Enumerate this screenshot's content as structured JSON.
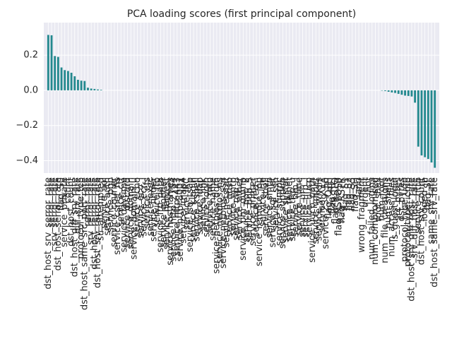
{
  "chart_data": {
    "type": "bar",
    "title": "PCA loading scores (first principal component)",
    "color": "#23898e",
    "background": "#eaeaf2",
    "grid": true,
    "ylim": [
      -0.47,
      0.385
    ],
    "yticks": [
      {
        "value": -0.4,
        "label": "−0.4"
      },
      {
        "value": -0.2,
        "label": "−0.2"
      },
      {
        "value": 0.0,
        "label": "0.0"
      },
      0.2
    ],
    "categories": [
      "dst_host_srv_serror_rate",
      "serror_rate",
      "srv_serror_rate",
      "dst_host_serror_rate",
      "flag_S0",
      "service_private",
      "count",
      "dst_host_count",
      "dst_host_diff_srv_rate",
      "diff_srv_rate",
      "protocol_type_tcp",
      "dst_host_same_src_port_rate",
      "rerror_rate",
      "srv_rerror_rate",
      "dst_host_rerror_rate",
      "dst_host_srv_rerror_rate",
      "su_attempted",
      "service_aol",
      "service_auth",
      "service_bgp",
      "service_courier",
      "service_csnet_ns",
      "service_ctf",
      "service_daytime",
      "service_discard",
      "service_domain",
      "service_domain_u",
      "service_echo",
      "service_eco_i",
      "service_ecr_i",
      "service_efs",
      "service_exec",
      "service_finger",
      "service_ftp",
      "service_ftp_data",
      "service_gopher",
      "service_harvest",
      "service_hostnames",
      "service_http_2784",
      "service_http_443",
      "service_http_8001",
      "service_imap4",
      "service_IRC",
      "service_iso_tsap",
      "service_klogin",
      "service_kshell",
      "service_ldap",
      "service_link",
      "service_login",
      "service_mtp",
      "service_name",
      "service_netbios_dgm",
      "service_netbios_ns",
      "service_netbios_ssn",
      "service_netstat",
      "service_nnsp",
      "service_nntp",
      "service_ntp_u",
      "service_other",
      "service_pm_dump",
      "service_pop_2",
      "service_pop_3",
      "service_printer",
      "service_red_i",
      "service_remote_job",
      "service_rje",
      "service_shell",
      "service_smtp",
      "service_sql_net",
      "service_ssh",
      "service_sunrpc",
      "service_supdup",
      "service_systat",
      "service_telnet",
      "service_tftp_u",
      "service_tim_i",
      "service_time",
      "service_urh_i",
      "service_urp_i",
      "service_uucp",
      "service_uucp_path",
      "service_vmnet",
      "service_whois",
      "service_X11",
      "service_Z39_50",
      "flag_OTH",
      "flag_REJ",
      "flag_RSTO",
      "flag_RSTOS0",
      "flag_RSTR",
      "flag_S1",
      "flag_S2",
      "flag_S3",
      "flag_SH",
      "land",
      "wrong_fragment",
      "urgent",
      "hot",
      "num_failed_logins",
      "num_compromised",
      "root_shell",
      "num_root",
      "num_file_creations",
      "num_shells",
      "num_access_files",
      "is_guest_login",
      "src_bytes",
      "dst_bytes",
      "protocol_type_udp",
      "protocol_type_icmp",
      "dst_host_srv_diff_host_rate",
      "srv_diff_host_rate",
      "service_http",
      "dst_host_srv_count",
      "logged_in",
      "flag_SF",
      "same_srv_rate",
      "dst_host_same_srv_rate"
    ],
    "values": [
      0.315,
      0.313,
      0.195,
      0.19,
      0.13,
      0.115,
      0.11,
      0.1,
      0.08,
      0.06,
      0.055,
      0.053,
      0.015,
      0.01,
      0.008,
      0.005,
      0.003,
      0,
      0,
      0,
      0,
      0,
      0,
      0,
      0,
      0,
      0,
      0,
      0,
      0,
      0,
      0,
      0,
      0,
      0,
      0,
      0,
      0,
      0,
      0,
      0,
      0,
      0,
      0,
      0,
      0,
      0,
      0,
      0,
      0,
      0,
      0,
      0,
      0,
      0,
      0,
      0,
      0,
      0,
      0,
      0,
      0,
      0,
      0,
      0,
      0,
      0,
      0,
      0,
      0,
      0,
      0,
      0,
      0,
      0,
      0,
      0,
      0,
      0,
      0,
      0,
      0,
      0,
      0,
      0,
      0,
      0,
      0,
      0,
      0,
      0,
      0,
      0,
      0,
      0,
      0,
      0,
      0,
      0,
      0,
      0,
      -0.002,
      -0.004,
      -0.008,
      -0.012,
      -0.015,
      -0.02,
      -0.025,
      -0.03,
      -0.032,
      -0.035,
      -0.07,
      -0.32,
      -0.37,
      -0.38,
      -0.39,
      -0.41,
      -0.44
    ]
  }
}
